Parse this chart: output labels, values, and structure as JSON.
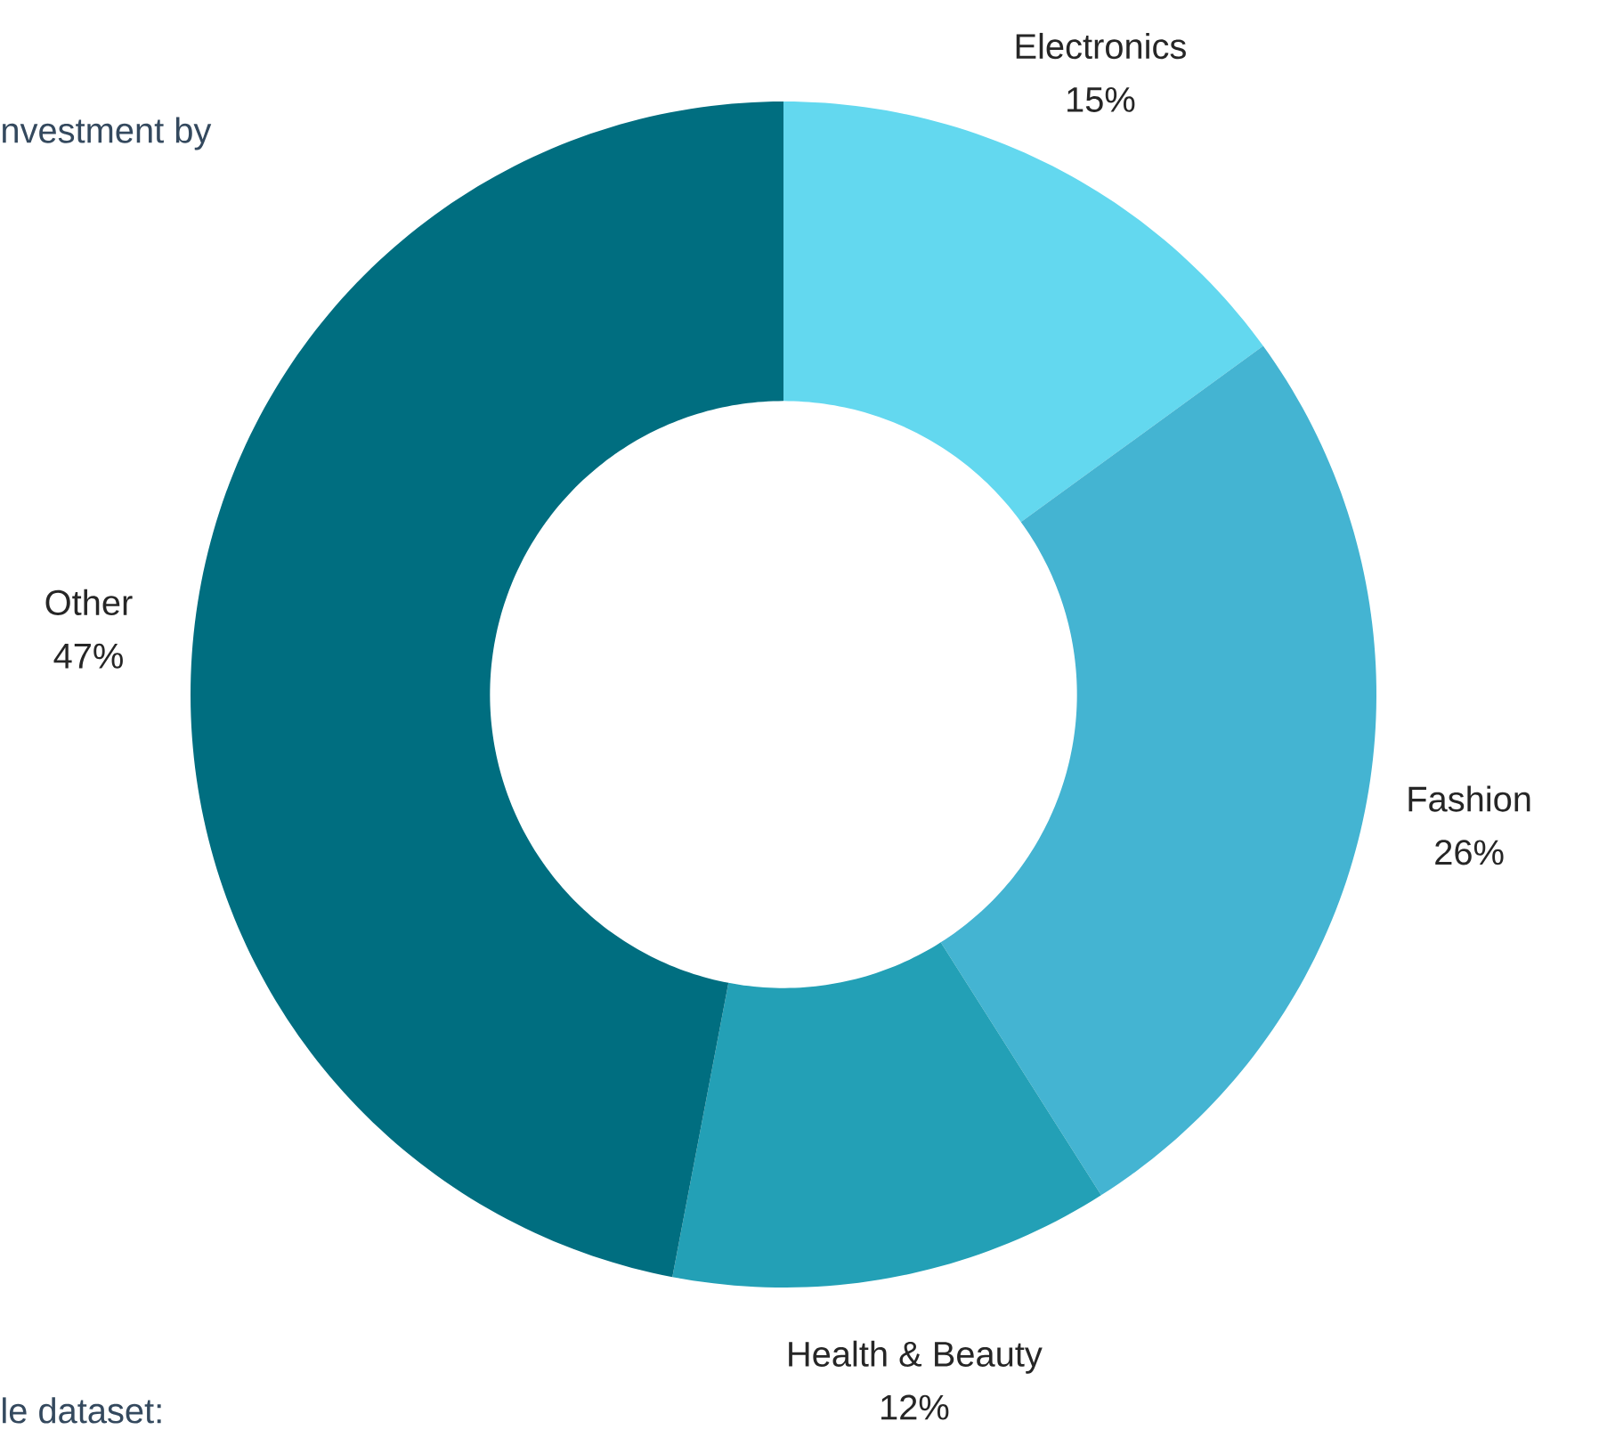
{
  "chart_data": {
    "type": "donut",
    "categories": [
      "Electronics",
      "Fashion",
      "Health & Beauty",
      "Other"
    ],
    "values": [
      15,
      26,
      12,
      47
    ],
    "value_labels": [
      "15%",
      "26%",
      "12%",
      "47%"
    ],
    "colors": [
      "#63d8ef",
      "#44b4d2",
      "#23a0b6",
      "#006e80"
    ],
    "annotations": [
      "nvestment by",
      "le dataset:"
    ]
  }
}
